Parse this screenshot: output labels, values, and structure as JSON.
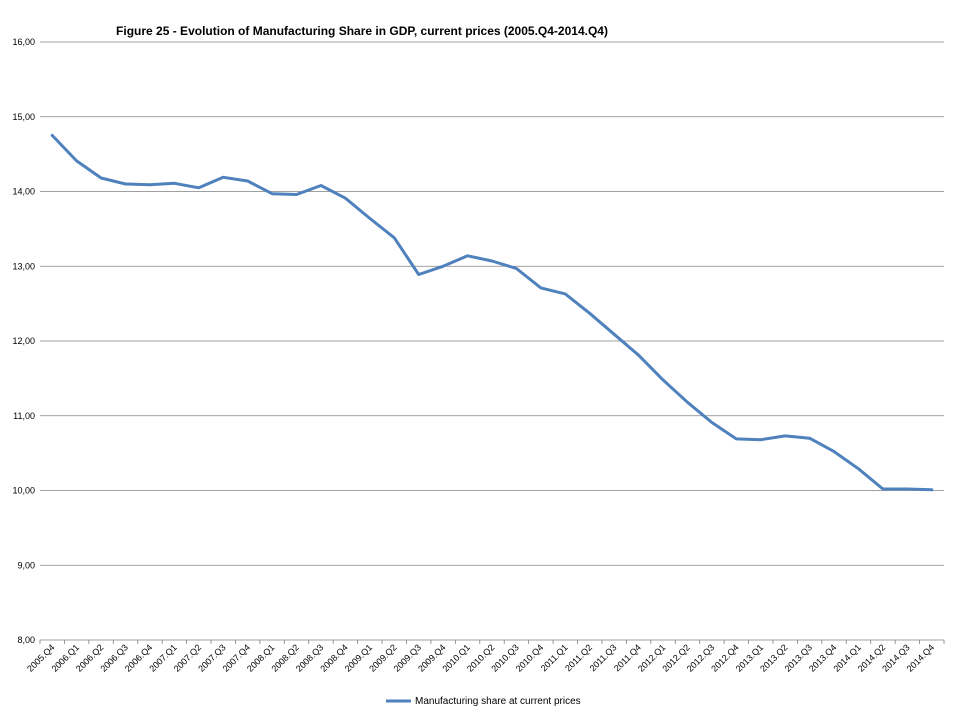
{
  "chart_data": {
    "type": "line",
    "title": "Figure 25 - Evolution  of Manufacturing  Share  in GDP,  current prices  (2005.Q4-2014.Q4)",
    "xlabel": "",
    "ylabel": "",
    "ylim": [
      8,
      16
    ],
    "yticks": [
      "8,00",
      "9,00",
      "10,00",
      "11,00",
      "12,00",
      "13,00",
      "14,00",
      "15,00",
      "16,00"
    ],
    "grid": true,
    "legend_position": "bottom",
    "categories": [
      "2005.Q4",
      "2006.Q1",
      "2006.Q2",
      "2006.Q3",
      "2006.Q4",
      "2007.Q1",
      "2007.Q2",
      "2007.Q3",
      "2007.Q4",
      "2008.Q1",
      "2008.Q2",
      "2008.Q3",
      "2008.Q4",
      "2009.Q1",
      "2009.Q2",
      "2009.Q3",
      "2009.Q4",
      "2010.Q1",
      "2010.Q2",
      "2010.Q3",
      "2010.Q4",
      "2011.Q1",
      "2011.Q2",
      "2011.Q3",
      "2011.Q4",
      "2012.Q1",
      "2012.Q2",
      "2012.Q3",
      "2012.Q4",
      "2013.Q1",
      "2013.Q2",
      "2013.Q3",
      "2013.Q4",
      "2014.Q1",
      "2014.Q2",
      "2014.Q3",
      "2014.Q4"
    ],
    "series": [
      {
        "name": "Manufacturing share at current prices",
        "color": "#4f81bd",
        "values": [
          14.75,
          14.41,
          14.18,
          14.1,
          14.09,
          14.11,
          14.05,
          14.19,
          14.14,
          13.97,
          13.96,
          14.08,
          13.91,
          13.64,
          13.38,
          12.89,
          13.0,
          13.14,
          13.07,
          12.97,
          12.71,
          12.63,
          12.37,
          12.09,
          11.81,
          11.48,
          11.18,
          10.91,
          10.69,
          10.68,
          10.73,
          10.7,
          10.52,
          10.29,
          10.02,
          10.02,
          10.01
        ]
      }
    ],
    "colors": {
      "gridline": "#808080",
      "axis": "#808080"
    }
  }
}
